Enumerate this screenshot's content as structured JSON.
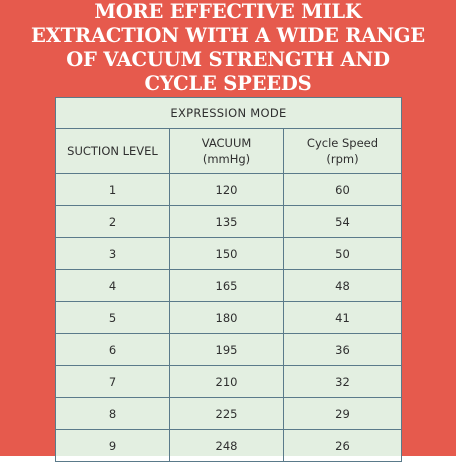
{
  "headline": {
    "lines": [
      "MORE EFFECTIVE MILK",
      "EXTRACTION WITH A WIDE RANGE",
      "OF VACUUM STRENGTH AND",
      "CYCLE SPEEDS"
    ]
  },
  "table": {
    "mode_title": "EXPRESSION MODE",
    "headers": {
      "level": "SUCTION LEVEL",
      "vacuum_line1": "VACUUM",
      "vacuum_line2": "(mmHg)",
      "speed_line1": "Cycle Speed",
      "speed_line2": "(rpm)"
    },
    "rows": [
      {
        "level": "1",
        "vacuum": "120",
        "speed": "60"
      },
      {
        "level": "2",
        "vacuum": "135",
        "speed": "54"
      },
      {
        "level": "3",
        "vacuum": "150",
        "speed": "50"
      },
      {
        "level": "4",
        "vacuum": "165",
        "speed": "48"
      },
      {
        "level": "5",
        "vacuum": "180",
        "speed": "41"
      },
      {
        "level": "6",
        "vacuum": "195",
        "speed": "36"
      },
      {
        "level": "7",
        "vacuum": "210",
        "speed": "32"
      },
      {
        "level": "8",
        "vacuum": "225",
        "speed": "29"
      },
      {
        "level": "9",
        "vacuum": "248",
        "speed": "26"
      }
    ]
  },
  "colors": {
    "background": "#e65a4d",
    "panel": "#e3efe1",
    "grid": "#5a7a8a",
    "headline_text": "#ffffff"
  }
}
